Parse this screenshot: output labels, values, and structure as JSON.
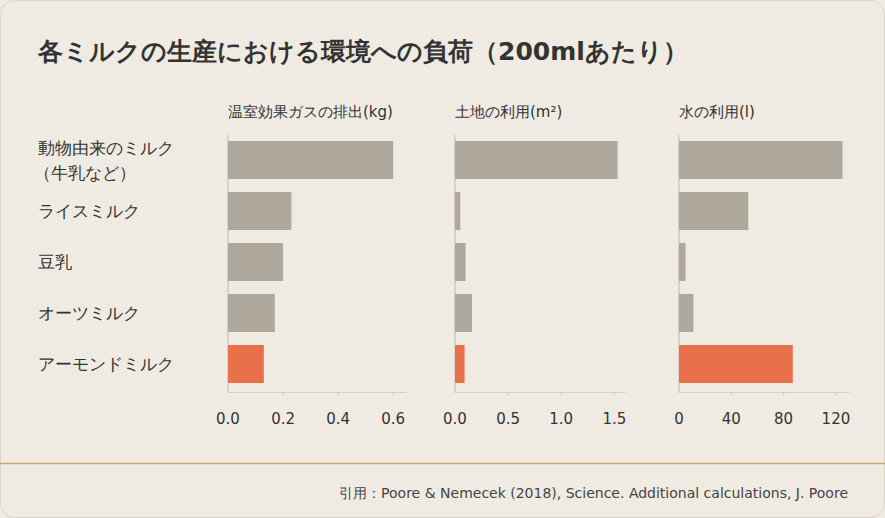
{
  "title": "各ミルクの生産における環境への負荷（200mlあたり）",
  "source": "引用：Poore & Nemecek (2018), Science. Additional calculations, J. Poore",
  "chart_data": [
    {
      "type": "bar",
      "orientation": "horizontal",
      "title": "温室効果ガスの排出(kg)",
      "categories": [
        "動物由来のミルク\n（牛乳など）",
        "ライスミルク",
        "豆乳",
        "オーツミルク",
        "アーモンドミルク"
      ],
      "values": [
        0.6,
        0.23,
        0.2,
        0.17,
        0.13
      ],
      "colors": [
        "#aea79b",
        "#aea79b",
        "#aea79b",
        "#aea79b",
        "#e8714a"
      ],
      "xlim": [
        0,
        0.65
      ],
      "xticks": [
        {
          "value": 0,
          "label": "0.0"
        },
        0.2,
        0.4,
        0.6
      ],
      "tick_labels": true
    },
    {
      "type": "bar",
      "orientation": "horizontal",
      "title": "土地の利用(m²)",
      "categories": [
        "動物由来のミルク\n（牛乳など）",
        "ライスミルク",
        "豆乳",
        "オーツミルク",
        "アーモンドミルク"
      ],
      "values": [
        1.53,
        0.05,
        0.1,
        0.16,
        0.09
      ],
      "colors": [
        "#aea79b",
        "#aea79b",
        "#aea79b",
        "#aea79b",
        "#e8714a"
      ],
      "xlim": [
        0,
        1.6
      ],
      "xticks": [
        {
          "value": 0,
          "label": "0.0"
        },
        0.5,
        {
          "value": 1,
          "label": "1.0"
        },
        1.5
      ],
      "tick_labels": "x"
    },
    {
      "type": "bar",
      "orientation": "horizontal",
      "title": "水の利用(l)",
      "categories": [
        "動物由来のミルク\n（牛乳など）",
        "ライスミルク",
        "豆乳",
        "オーツミルク",
        "アーモンドミルク"
      ],
      "values": [
        125,
        53,
        5,
        11,
        87
      ],
      "colors": [
        "#aea79b",
        "#aea79b",
        "#aea79b",
        "#aea79b",
        "#e8714a"
      ],
      "xlim": [
        0,
        130
      ],
      "xticks": [
        0,
        40,
        80,
        120
      ],
      "tick_labels": "x"
    }
  ]
}
